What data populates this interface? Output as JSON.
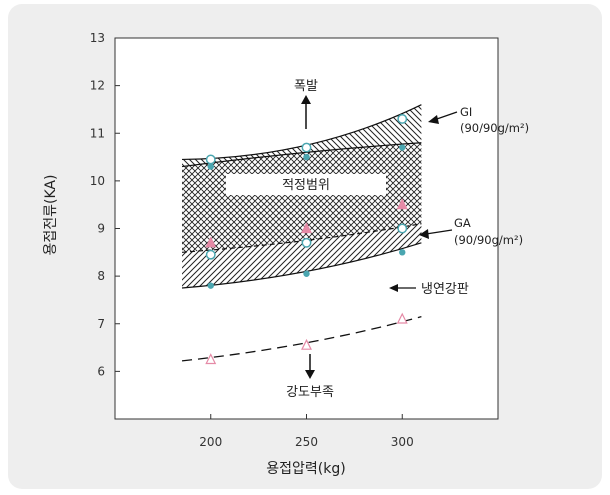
{
  "chart_data": {
    "type": "line",
    "xlabel": "용접압력(kg)",
    "ylabel": "용접전류(KA)",
    "xlim": [
      150,
      350
    ],
    "ylim": [
      5,
      13
    ],
    "xticks": [
      200,
      250,
      300
    ],
    "yticks": [
      6,
      7,
      8,
      9,
      10,
      11,
      12,
      13
    ],
    "grid": false,
    "regions": [
      {
        "label": "적정범위",
        "upper": [
          [
            185,
            10.3
          ],
          [
            250,
            10.6
          ],
          [
            310,
            10.8
          ]
        ],
        "lower": [
          [
            185,
            8.5
          ],
          [
            250,
            8.75
          ],
          [
            310,
            9.1
          ]
        ]
      },
      {
        "label": "GI",
        "upper": [
          [
            185,
            10.45
          ],
          [
            250,
            10.75
          ],
          [
            310,
            11.6
          ]
        ],
        "lower": [
          [
            185,
            10.3
          ],
          [
            250,
            10.6
          ],
          [
            310,
            10.8
          ]
        ]
      },
      {
        "label": "GA",
        "upper": [
          [
            185,
            8.5
          ],
          [
            250,
            8.75
          ],
          [
            310,
            9.1
          ]
        ],
        "lower": [
          [
            185,
            7.75
          ],
          [
            250,
            8.1
          ],
          [
            310,
            8.7
          ]
        ]
      }
    ],
    "points": {
      "gi": [
        [
          200,
          10.45
        ],
        [
          250,
          10.7
        ],
        [
          300,
          11.3
        ],
        [
          200,
          8.45
        ],
        [
          250,
          8.7
        ],
        [
          300,
          9.0
        ]
      ],
      "cold": [
        [
          200,
          7.8
        ],
        [
          250,
          8.05
        ],
        [
          300,
          8.5
        ],
        [
          200,
          10.3
        ],
        [
          250,
          10.5
        ],
        [
          300,
          10.7
        ]
      ],
      "ga": [
        [
          200,
          8.7
        ],
        [
          250,
          9.0
        ],
        [
          300,
          9.5
        ]
      ],
      "weak": [
        [
          200,
          6.25
        ],
        [
          250,
          6.55
        ],
        [
          300,
          7.1
        ]
      ]
    },
    "weak_curve": [
      [
        185,
        6.22
      ],
      [
        250,
        6.6
      ],
      [
        310,
        7.15
      ]
    ],
    "annotations": {
      "explosion": "폭발",
      "proper_range": "적정범위",
      "gi": "GI",
      "gi_coating": "(90/90g/m²)",
      "ga": "GA",
      "ga_coating": "(90/90g/m²)",
      "cold_rolled": "냉연강판",
      "low_strength": "강도부족"
    },
    "colors": {
      "dots": "#4aa6b0",
      "triangles": "#e58aa6",
      "hatch": "#222222"
    }
  }
}
